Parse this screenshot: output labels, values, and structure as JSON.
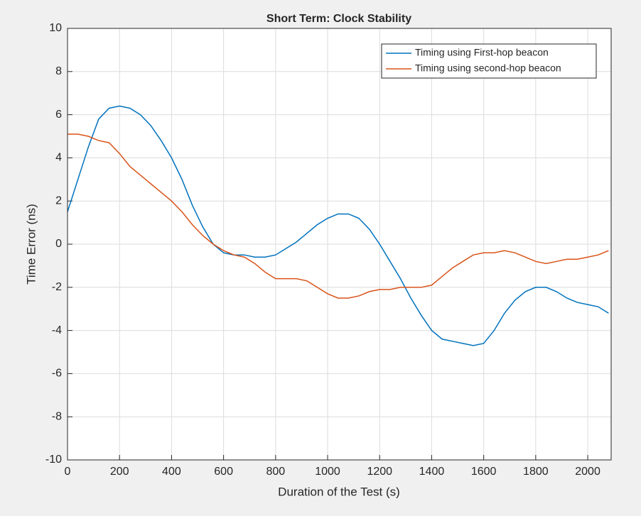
{
  "chart_data": {
    "type": "line",
    "title": "Short Term: Clock Stability",
    "xlabel": "Duration of the Test (s)",
    "ylabel": "Time Error (ns)",
    "x": [
      0,
      40,
      80,
      120,
      160,
      200,
      240,
      280,
      320,
      360,
      400,
      440,
      480,
      520,
      560,
      600,
      640,
      680,
      720,
      760,
      800,
      840,
      880,
      920,
      960,
      1000,
      1040,
      1080,
      1120,
      1160,
      1200,
      1240,
      1280,
      1320,
      1360,
      1400,
      1440,
      1480,
      1520,
      1560,
      1600,
      1640,
      1680,
      1720,
      1760,
      1800,
      1840,
      1880,
      1920,
      1960,
      2000,
      2040,
      2080
    ],
    "series": [
      {
        "name": "Timing using First-hop beacon",
        "color": "#0072bd",
        "values": [
          1.5,
          3.0,
          4.5,
          5.8,
          6.3,
          6.4,
          6.3,
          6.0,
          5.5,
          4.8,
          4.0,
          3.0,
          1.8,
          0.8,
          0.0,
          -0.4,
          -0.5,
          -0.5,
          -0.6,
          -0.6,
          -0.5,
          -0.2,
          0.1,
          0.5,
          0.9,
          1.2,
          1.4,
          1.4,
          1.2,
          0.7,
          0.0,
          -0.8,
          -1.6,
          -2.5,
          -3.3,
          -4.0,
          -4.4,
          -4.5,
          -4.6,
          -4.7,
          -4.6,
          -4.0,
          -3.2,
          -2.6,
          -2.2,
          -2.0,
          -2.0,
          -2.2,
          -2.5,
          -2.7,
          -2.8,
          -2.9,
          -3.2
        ]
      },
      {
        "name": "Timing using second-hop beacon",
        "color": "#d95319",
        "values": [
          5.1,
          5.1,
          5.0,
          4.8,
          4.7,
          4.2,
          3.6,
          3.2,
          2.8,
          2.4,
          2.0,
          1.5,
          0.9,
          0.4,
          0.0,
          -0.3,
          -0.5,
          -0.6,
          -0.9,
          -1.3,
          -1.6,
          -1.6,
          -1.6,
          -1.7,
          -2.0,
          -2.3,
          -2.5,
          -2.5,
          -2.4,
          -2.2,
          -2.1,
          -2.1,
          -2.0,
          -2.0,
          -2.0,
          -1.9,
          -1.5,
          -1.1,
          -0.8,
          -0.5,
          -0.4,
          -0.4,
          -0.3,
          -0.4,
          -0.6,
          -0.8,
          -0.9,
          -0.8,
          -0.7,
          -0.7,
          -0.6,
          -0.5,
          -0.3
        ]
      }
    ],
    "xlim": [
      0,
      2090
    ],
    "xticks": [
      0,
      200,
      400,
      600,
      800,
      1000,
      1200,
      1400,
      1600,
      1800,
      2000
    ],
    "ylim": [
      -10,
      10
    ],
    "yticks": [
      -10,
      -8,
      -6,
      -4,
      -2,
      0,
      2,
      4,
      6,
      8,
      10
    ],
    "grid": true,
    "legend": "northeast"
  }
}
